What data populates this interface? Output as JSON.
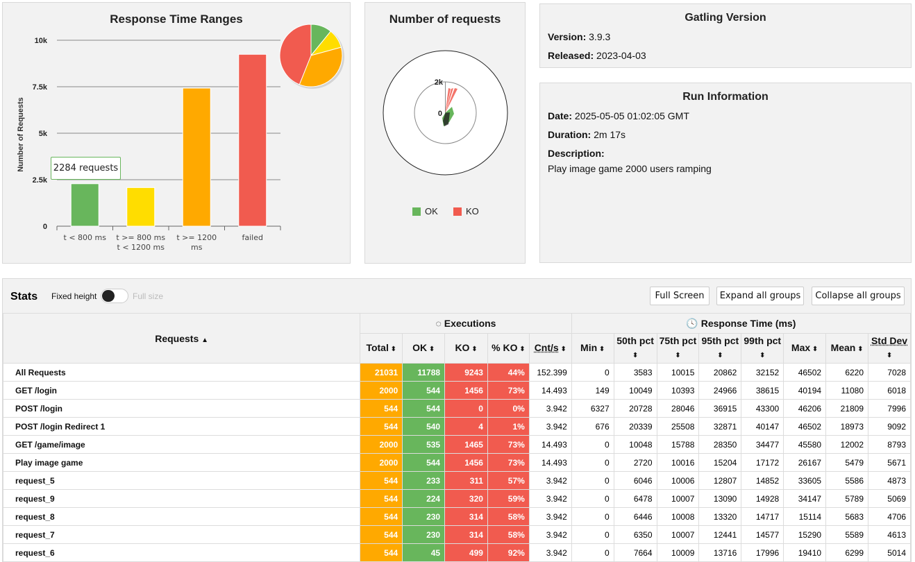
{
  "response_time_ranges": {
    "title": "Response Time Ranges",
    "tooltip": "2284 requests",
    "chart_data": {
      "type": "bar",
      "categories": [
        [
          "t < 800 ms"
        ],
        [
          "t >= 800 ms",
          "t < 1200 ms"
        ],
        [
          "t >= 1200",
          "ms"
        ],
        [
          "failed"
        ]
      ],
      "values": [
        2284,
        2077,
        7427,
        9243
      ],
      "colors": [
        "#68b65c",
        "#ffdd00",
        "#ffa900",
        "#f15b4f"
      ],
      "ylabel": "Number of Requests",
      "ylim": [
        0,
        10000
      ],
      "yticks": [
        0,
        2500,
        5000,
        7500,
        10000
      ],
      "ytick_labels": [
        "0",
        "2.5k",
        "5k",
        "7.5k",
        "10k"
      ],
      "pie": {
        "values": [
          2284,
          2077,
          7427,
          9243
        ],
        "position": "top-right"
      }
    }
  },
  "number_of_requests": {
    "title": "Number of requests",
    "chart_data": {
      "type": "polar",
      "series": [
        {
          "name": "OK"
        },
        {
          "name": "KO"
        }
      ],
      "tick_labels": [
        "0",
        "2k"
      ]
    },
    "legend": [
      {
        "label": "OK",
        "color": "#68b65c"
      },
      {
        "label": "KO",
        "color": "#f15b4f"
      }
    ]
  },
  "gatling_version": {
    "title": "Gatling Version",
    "version_label": "Version:",
    "version": "3.9.3",
    "released_label": "Released:",
    "released": "2023-04-03"
  },
  "run_information": {
    "title": "Run Information",
    "date_label": "Date:",
    "date": "2025-05-05 01:02:05 GMT",
    "duration_label": "Duration:",
    "duration": "2m 17s",
    "description_label": "Description:",
    "description": "Play image game 2000 users ramping"
  },
  "stats": {
    "title": "Stats",
    "fixed_height": "Fixed height",
    "full_size": "Full size",
    "buttons": {
      "full_screen": "Full Screen",
      "expand": "Expand all groups",
      "collapse": "Collapse all groups"
    },
    "headers": {
      "requests": "Requests",
      "executions": "Executions",
      "response_time": "Response Time (ms)",
      "cols": [
        "Total",
        "OK",
        "KO",
        "% KO",
        "Cnt/s",
        "Min",
        "50th pct",
        "75th pct",
        "95th pct",
        "99th pct",
        "Max",
        "Mean",
        "Std Dev"
      ]
    },
    "rows": [
      [
        "All Requests",
        "21031",
        "11788",
        "9243",
        "44%",
        "152.399",
        "0",
        "3583",
        "10015",
        "20862",
        "32152",
        "46502",
        "6220",
        "7028"
      ],
      [
        "GET /login",
        "2000",
        "544",
        "1456",
        "73%",
        "14.493",
        "149",
        "10049",
        "10393",
        "24966",
        "38615",
        "40194",
        "11080",
        "6018"
      ],
      [
        "POST /login",
        "544",
        "544",
        "0",
        "0%",
        "3.942",
        "6327",
        "20728",
        "28046",
        "36915",
        "43300",
        "46206",
        "21809",
        "7996"
      ],
      [
        "POST /login Redirect 1",
        "544",
        "540",
        "4",
        "1%",
        "3.942",
        "676",
        "20339",
        "25508",
        "32871",
        "40147",
        "46502",
        "18973",
        "9092"
      ],
      [
        "GET /game/image",
        "2000",
        "535",
        "1465",
        "73%",
        "14.493",
        "0",
        "10048",
        "15788",
        "28350",
        "34477",
        "45580",
        "12002",
        "8793"
      ],
      [
        "Play image game",
        "2000",
        "544",
        "1456",
        "73%",
        "14.493",
        "0",
        "2720",
        "10016",
        "15204",
        "17172",
        "26167",
        "5479",
        "5671"
      ],
      [
        "request_5",
        "544",
        "233",
        "311",
        "57%",
        "3.942",
        "0",
        "6046",
        "10006",
        "12807",
        "14852",
        "33605",
        "5586",
        "4873"
      ],
      [
        "request_9",
        "544",
        "224",
        "320",
        "59%",
        "3.942",
        "0",
        "6478",
        "10007",
        "13090",
        "14928",
        "34147",
        "5789",
        "5069"
      ],
      [
        "request_8",
        "544",
        "230",
        "314",
        "58%",
        "3.942",
        "0",
        "6446",
        "10008",
        "13320",
        "14717",
        "15114",
        "5683",
        "4706"
      ],
      [
        "request_7",
        "544",
        "230",
        "314",
        "58%",
        "3.942",
        "0",
        "6350",
        "10007",
        "12441",
        "14577",
        "15290",
        "5589",
        "4613"
      ],
      [
        "request_6",
        "544",
        "45",
        "499",
        "92%",
        "3.942",
        "0",
        "7664",
        "10009",
        "13716",
        "17996",
        "19410",
        "6299",
        "5014"
      ]
    ]
  }
}
